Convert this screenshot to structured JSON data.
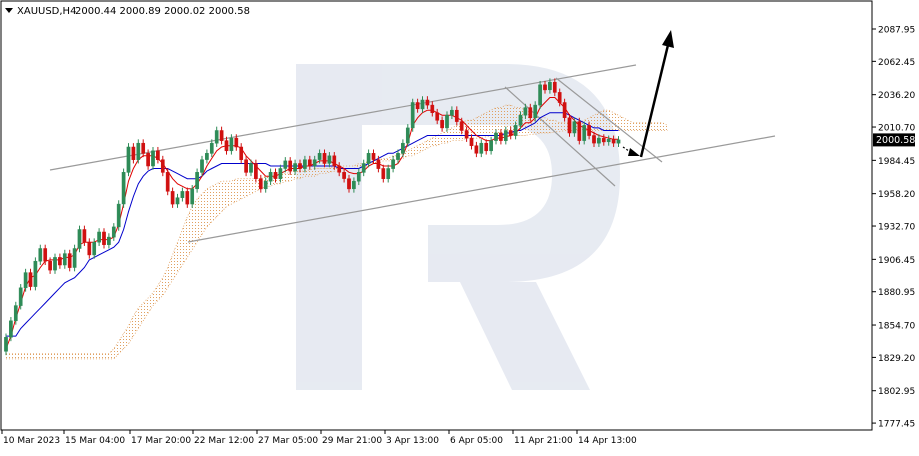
{
  "header": {
    "symbol": "XAUUSD,H4",
    "ohlc": "2000.44 2000.89 2000.02 2000.58"
  },
  "colors": {
    "bull": "#2e8b57",
    "bear": "#d01010",
    "tenkan": "#e00000",
    "kijun": "#0000cc",
    "cloud": "#e0a060",
    "channel": "#9a9a9a",
    "arrow": "#000000",
    "watermark": "#dfe4ee"
  },
  "chart_data": {
    "type": "candlestick",
    "y_axis": {
      "min": 1772,
      "max": 2110,
      "ticks": [
        "2087.95",
        "2062.45",
        "2036.20",
        "2010.70",
        "1984.45",
        "1958.20",
        "1932.70",
        "1906.45",
        "1880.95",
        "1854.70",
        "1829.20",
        "1802.95",
        "1777.45"
      ]
    },
    "x_axis": {
      "ticks": [
        "10 Mar 2023",
        "15 Mar 04:00",
        "17 Mar 20:00",
        "22 Mar 12:00",
        "27 Mar 05:00",
        "29 Mar 21:00",
        "3 Apr 13:00",
        "6 Apr 05:00",
        "11 Apr 21:00",
        "14 Apr 13:00"
      ]
    },
    "last_price": "2000.58",
    "series": [
      {
        "kind": "ohlc",
        "candles": [
          [
            1834,
            1845
          ],
          [
            1845,
            1858
          ],
          [
            1858,
            1870
          ],
          [
            1870,
            1884
          ],
          [
            1884,
            1896
          ],
          [
            1896,
            1885
          ],
          [
            1885,
            1905
          ],
          [
            1905,
            1915
          ],
          [
            1915,
            1905
          ],
          [
            1905,
            1898
          ],
          [
            1898,
            1908
          ],
          [
            1908,
            1902
          ],
          [
            1902,
            1911
          ],
          [
            1911,
            1900
          ],
          [
            1900,
            1915
          ],
          [
            1915,
            1930
          ],
          [
            1930,
            1920
          ],
          [
            1920,
            1910
          ],
          [
            1910,
            1920
          ],
          [
            1920,
            1928
          ],
          [
            1928,
            1918
          ],
          [
            1918,
            1924
          ],
          [
            1924,
            1932
          ],
          [
            1932,
            1950
          ],
          [
            1950,
            1975
          ],
          [
            1975,
            1995
          ],
          [
            1995,
            1985
          ],
          [
            1985,
            1998
          ],
          [
            1998,
            1990
          ],
          [
            1990,
            1980
          ],
          [
            1980,
            1992
          ],
          [
            1992,
            1985
          ],
          [
            1985,
            1975
          ],
          [
            1975,
            1960
          ],
          [
            1960,
            1950
          ],
          [
            1950,
            1955
          ],
          [
            1955,
            1960
          ],
          [
            1960,
            1950
          ],
          [
            1950,
            1962
          ],
          [
            1962,
            1975
          ],
          [
            1975,
            1985
          ],
          [
            1985,
            1990
          ],
          [
            1990,
            1998
          ],
          [
            1998,
            2008
          ],
          [
            2008,
            2000
          ],
          [
            2000,
            1992
          ],
          [
            1992,
            2002
          ],
          [
            2002,
            1995
          ],
          [
            1995,
            1985
          ],
          [
            1985,
            1975
          ],
          [
            1975,
            1982
          ],
          [
            1982,
            1970
          ],
          [
            1970,
            1962
          ],
          [
            1962,
            1968
          ],
          [
            1968,
            1975
          ],
          [
            1975,
            1970
          ],
          [
            1970,
            1978
          ],
          [
            1978,
            1984
          ],
          [
            1984,
            1976
          ],
          [
            1976,
            1982
          ],
          [
            1982,
            1978
          ],
          [
            1978,
            1985
          ],
          [
            1985,
            1980
          ],
          [
            1980,
            1985
          ],
          [
            1985,
            1990
          ],
          [
            1990,
            1982
          ],
          [
            1982,
            1988
          ],
          [
            1988,
            1980
          ],
          [
            1980,
            1975
          ],
          [
            1975,
            1970
          ],
          [
            1970,
            1962
          ],
          [
            1962,
            1968
          ],
          [
            1968,
            1975
          ],
          [
            1975,
            1982
          ],
          [
            1982,
            1990
          ],
          [
            1990,
            1985
          ],
          [
            1985,
            1978
          ],
          [
            1978,
            1970
          ],
          [
            1970,
            1978
          ],
          [
            1978,
            1985
          ],
          [
            1985,
            1990
          ],
          [
            1990,
            1998
          ],
          [
            1998,
            2010
          ],
          [
            2010,
            2030
          ],
          [
            2030,
            2025
          ],
          [
            2025,
            2032
          ],
          [
            2032,
            2028
          ],
          [
            2028,
            2022
          ],
          [
            2022,
            2016
          ],
          [
            2016,
            2010
          ],
          [
            2010,
            2020
          ],
          [
            2020,
            2024
          ],
          [
            2024,
            2015
          ],
          [
            2015,
            2008
          ],
          [
            2008,
            2002
          ],
          [
            2002,
            1996
          ],
          [
            1996,
            1990
          ],
          [
            1990,
            1998
          ],
          [
            1998,
            1992
          ],
          [
            1992,
            2000
          ],
          [
            2000,
            2006
          ],
          [
            2006,
            2000
          ],
          [
            2000,
            2008
          ],
          [
            2008,
            2004
          ],
          [
            2004,
            2012
          ],
          [
            2012,
            2020
          ],
          [
            2020,
            2026
          ],
          [
            2026,
            2018
          ],
          [
            2018,
            2028
          ],
          [
            2028,
            2044
          ],
          [
            2044,
            2040
          ],
          [
            2040,
            2046
          ],
          [
            2046,
            2038
          ],
          [
            2038,
            2030
          ],
          [
            2030,
            2018
          ],
          [
            2018,
            2006
          ],
          [
            2006,
            2015
          ],
          [
            2015,
            2000
          ],
          [
            2000,
            2012
          ],
          [
            2012,
            2004
          ],
          [
            2004,
            1998
          ],
          [
            1998,
            2002
          ],
          [
            2002,
            1999
          ],
          [
            1999,
            2001
          ],
          [
            2001,
            1998
          ],
          [
            1998,
            2000.58
          ]
        ]
      },
      {
        "kind": "tenkan",
        "values": [
          1836,
          1846,
          1860,
          1872,
          1885,
          1892,
          1894,
          1900,
          1905,
          1906,
          1906,
          1906,
          1908,
          1908,
          1910,
          1918,
          1920,
          1920,
          1920,
          1922,
          1922,
          1922,
          1924,
          1934,
          1950,
          1968,
          1978,
          1985,
          1988,
          1988,
          1988,
          1986,
          1982,
          1976,
          1970,
          1966,
          1964,
          1962,
          1962,
          1966,
          1972,
          1980,
          1986,
          1992,
          1995,
          1996,
          1996,
          1996,
          1994,
          1988,
          1984,
          1980,
          1976,
          1972,
          1972,
          1972,
          1974,
          1976,
          1978,
          1978,
          1978,
          1980,
          1980,
          1982,
          1984,
          1984,
          1984,
          1982,
          1980,
          1978,
          1975,
          1974,
          1974,
          1976,
          1980,
          1982,
          1982,
          1980,
          1980,
          1980,
          1982,
          1988,
          1998,
          2012,
          2018,
          2022,
          2024,
          2024,
          2022,
          2020,
          2020,
          2020,
          2018,
          2016,
          2012,
          2008,
          2004,
          2002,
          2000,
          2000,
          2002,
          2002,
          2003,
          2004,
          2006,
          2010,
          2014,
          2014,
          2018,
          2026,
          2030,
          2034,
          2034,
          2030,
          2026,
          2020,
          2016,
          2012,
          2010,
          2008,
          2006,
          2004,
          2003,
          2002,
          2001,
          2001
        ]
      },
      {
        "kind": "kijun",
        "values": [
          1846,
          1846,
          1846,
          1852,
          1856,
          1860,
          1864,
          1868,
          1872,
          1876,
          1880,
          1884,
          1888,
          1890,
          1892,
          1896,
          1900,
          1906,
          1908,
          1910,
          1912,
          1914,
          1916,
          1920,
          1930,
          1944,
          1956,
          1966,
          1972,
          1976,
          1978,
          1978,
          1978,
          1978,
          1976,
          1974,
          1972,
          1970,
          1970,
          1970,
          1972,
          1976,
          1978,
          1980,
          1982,
          1982,
          1982,
          1982,
          1982,
          1982,
          1982,
          1982,
          1982,
          1982,
          1980,
          1980,
          1980,
          1980,
          1980,
          1980,
          1980,
          1980,
          1980,
          1980,
          1980,
          1980,
          1980,
          1980,
          1978,
          1978,
          1978,
          1978,
          1978,
          1980,
          1982,
          1984,
          1986,
          1988,
          1990,
          1990,
          1992,
          1994,
          1996,
          1998,
          2000,
          2002,
          2004,
          2004,
          2004,
          2004,
          2004,
          2004,
          2004,
          2004,
          2004,
          2004,
          2004,
          2004,
          2004,
          2004,
          2004,
          2004,
          2006,
          2006,
          2008,
          2008,
          2010,
          2012,
          2014,
          2018,
          2020,
          2022,
          2022,
          2022,
          2022,
          2020,
          2018,
          2016,
          2014,
          2012,
          2010,
          2010,
          2008,
          2008,
          2008,
          2008
        ]
      },
      {
        "kind": "cloud_upper",
        "values": [
          1832,
          1832,
          1832,
          1832,
          1832,
          1832,
          1832,
          1832,
          1832,
          1832,
          1832,
          1832,
          1832,
          1832,
          1832,
          1832,
          1832,
          1832,
          1832,
          1832,
          1832,
          1832,
          1836,
          1842,
          1848,
          1854,
          1862,
          1868,
          1872,
          1876,
          1880,
          1886,
          1892,
          1900,
          1910,
          1920,
          1930,
          1940,
          1948,
          1954,
          1958,
          1962,
          1964,
          1966,
          1968,
          1968,
          1968,
          1970,
          1970,
          1970,
          1970,
          1970,
          1970,
          1972,
          1972,
          1972,
          1974,
          1974,
          1975,
          1976,
          1976,
          1976,
          1977,
          1978,
          1978,
          1978,
          1978,
          1980,
          1980,
          1980,
          1980,
          1980,
          1982,
          1982,
          1984,
          1984,
          1985,
          1986,
          1986,
          1988,
          1988,
          1990,
          1992,
          1994,
          1996,
          1998,
          2000,
          2002,
          2004,
          2006,
          2008,
          2010,
          2012,
          2014,
          2016,
          2016,
          2018,
          2020,
          2022,
          2024,
          2026,
          2026,
          2028,
          2028,
          2026,
          2026,
          2024,
          2022,
          2020,
          2018,
          2018,
          2016,
          2016,
          2014,
          2014,
          2014,
          2014,
          2014,
          2016,
          2018,
          2020,
          2022,
          2024,
          2024,
          2022,
          2020,
          2018,
          2016,
          2014,
          2014,
          2014,
          2014,
          2014,
          2014,
          2014,
          2012
        ]
      },
      {
        "kind": "cloud_lower",
        "values": [
          1828,
          1828,
          1828,
          1828,
          1828,
          1828,
          1828,
          1828,
          1828,
          1828,
          1828,
          1828,
          1828,
          1828,
          1828,
          1828,
          1828,
          1828,
          1828,
          1828,
          1828,
          1828,
          1828,
          1832,
          1836,
          1840,
          1846,
          1852,
          1858,
          1864,
          1870,
          1874,
          1878,
          1884,
          1890,
          1896,
          1902,
          1908,
          1914,
          1920,
          1926,
          1932,
          1936,
          1940,
          1944,
          1948,
          1950,
          1952,
          1954,
          1956,
          1958,
          1960,
          1962,
          1964,
          1964,
          1966,
          1966,
          1968,
          1968,
          1970,
          1970,
          1972,
          1972,
          1972,
          1974,
          1974,
          1975,
          1976,
          1976,
          1978,
          1978,
          1978,
          1980,
          1980,
          1980,
          1982,
          1982,
          1984,
          1984,
          1984,
          1986,
          1986,
          1988,
          1988,
          1990,
          1992,
          1994,
          1996,
          1996,
          1998,
          1998,
          2000,
          2000,
          2000,
          2002,
          2002,
          2002,
          2002,
          2003,
          2004,
          2004,
          2004,
          2004,
          2004,
          2004,
          2004,
          2004,
          2005,
          2005,
          2006,
          2006,
          2006,
          2007,
          2007,
          2008,
          2008,
          2008,
          2008,
          2008,
          2008,
          2008,
          2008,
          2008,
          2008,
          2008,
          2008,
          2008,
          2008,
          2008,
          2008,
          2008,
          2008,
          2008,
          2008,
          2008,
          2008
        ]
      }
    ]
  }
}
